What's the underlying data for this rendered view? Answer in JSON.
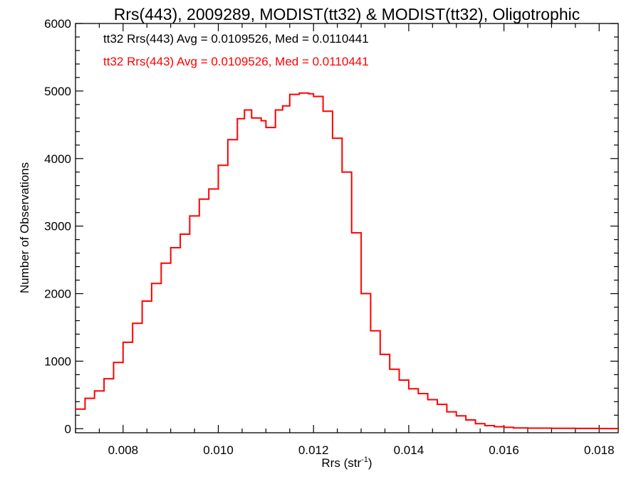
{
  "chart_data": {
    "type": "line",
    "title": "Rrs(443), 2009289, MODIST(tt32) & MODIST(tt32), Oligotrophic",
    "xlabel": "Rrs (str",
    "xlabel_sup": "-1",
    "xlabel_suffix": ")",
    "ylabel": "Number of Observations",
    "xlim": [
      0.007,
      0.0184
    ],
    "ylim": [
      -60,
      6000
    ],
    "x_ticks": [
      0.008,
      0.01,
      0.012,
      0.014,
      0.016,
      0.018
    ],
    "x_tick_labels": [
      "0.008",
      "0.010",
      "0.012",
      "0.014",
      "0.016",
      "0.018"
    ],
    "y_ticks": [
      0,
      1000,
      2000,
      3000,
      4000,
      5000,
      6000
    ],
    "y_tick_labels": [
      "0",
      "1000",
      "2000",
      "3000",
      "4000",
      "5000",
      "6000"
    ],
    "grid": false,
    "annotations": [
      {
        "text": "tt32 Rrs(443) Avg = 0.0109526, Med = 0.0110441",
        "color": "#000000"
      },
      {
        "text": "tt32 Rrs(443) Avg = 0.0109526, Med = 0.0110441",
        "color": "#ff0000"
      }
    ],
    "series": [
      {
        "color": "#ff0000",
        "step": true,
        "x": [
          0.007,
          0.0072,
          0.0074,
          0.0076,
          0.0078,
          0.008,
          0.0082,
          0.0084,
          0.0086,
          0.0088,
          0.009,
          0.0092,
          0.0094,
          0.0096,
          0.0098,
          0.01,
          0.0102,
          0.0104,
          0.01055,
          0.0107,
          0.0109,
          0.011,
          0.0112,
          0.01135,
          0.0115,
          0.0117,
          0.0119,
          0.012,
          0.0122,
          0.0124,
          0.0126,
          0.0128,
          0.013,
          0.0132,
          0.0134,
          0.0136,
          0.0138,
          0.014,
          0.0142,
          0.0144,
          0.0146,
          0.0148,
          0.015,
          0.0152,
          0.0154,
          0.0156,
          0.0158,
          0.016,
          0.0162,
          0.0165,
          0.017,
          0.0175,
          0.018,
          0.0184
        ],
        "y": [
          290,
          450,
          560,
          740,
          980,
          1280,
          1560,
          1890,
          2150,
          2450,
          2680,
          2880,
          3150,
          3400,
          3550,
          3900,
          4280,
          4590,
          4720,
          4600,
          4560,
          4460,
          4720,
          4780,
          4950,
          4970,
          4960,
          4920,
          4700,
          4300,
          3800,
          2900,
          2000,
          1450,
          1100,
          880,
          720,
          590,
          520,
          430,
          360,
          250,
          190,
          130,
          75,
          45,
          30,
          20,
          12,
          8,
          5,
          4,
          2,
          1
        ]
      }
    ]
  }
}
